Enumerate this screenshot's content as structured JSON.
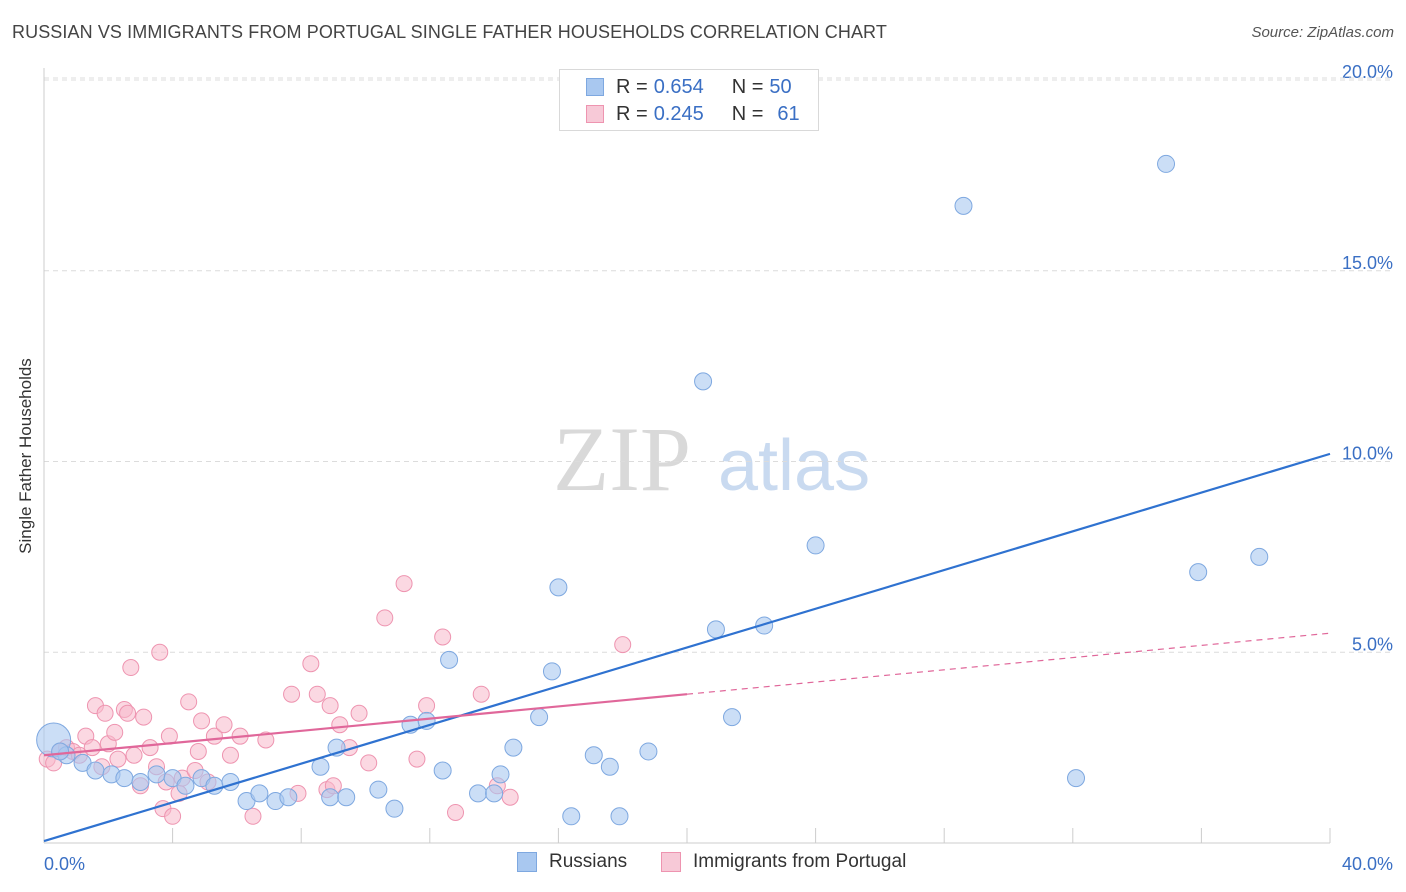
{
  "header": {
    "title": "RUSSIAN VS IMMIGRANTS FROM PORTUGAL SINGLE FATHER HOUSEHOLDS CORRELATION CHART",
    "source": "Source: ZipAtlas.com"
  },
  "watermark": {
    "zip": "ZIP",
    "atlas": "atlas"
  },
  "legend_top": {
    "rows": [
      {
        "r_label": "R = ",
        "r_value": "0.654",
        "n_label": "N = ",
        "n_value": "50"
      },
      {
        "r_label": "R = ",
        "r_value": "0.245",
        "n_label": "N = ",
        "n_value": "61"
      }
    ]
  },
  "colors": {
    "russians_fill": "#a9c8f0",
    "russians_stroke": "#7ea8e0",
    "russians_line": "#2f72d0",
    "portugal_fill": "#f7b8cb",
    "portugal_stroke": "#ee94b0",
    "portugal_line": "#e0679a",
    "axis_text": "#3a6fc4",
    "grid": "#dcdcdc"
  },
  "chart_data": {
    "type": "scatter",
    "title": "RUSSIAN VS IMMIGRANTS FROM PORTUGAL SINGLE FATHER HOUSEHOLDS CORRELATION CHART",
    "xlabel": "",
    "ylabel": "Single Father Households",
    "xlim": [
      0,
      40
    ],
    "ylim": [
      0,
      20.5
    ],
    "x_tick_labels": [
      "0.0%",
      "40.0%"
    ],
    "y_ticks": [
      5,
      10,
      15,
      20
    ],
    "y_tick_labels": [
      "5.0%",
      "10.0%",
      "15.0%",
      "20.0%"
    ],
    "grid": true,
    "legend_position": "top-center",
    "series": [
      {
        "name": "Russians",
        "R": 0.654,
        "N": 50,
        "trend": {
          "x": [
            0,
            40
          ],
          "y": [
            0.05,
            10.2
          ],
          "dashed_from": null
        },
        "points": [
          [
            0.3,
            2.7
          ],
          [
            0.7,
            2.3
          ],
          [
            1.2,
            2.1
          ],
          [
            1.6,
            1.9
          ],
          [
            2.1,
            1.8
          ],
          [
            2.5,
            1.7
          ],
          [
            3.0,
            1.6
          ],
          [
            3.5,
            1.8
          ],
          [
            4.0,
            1.7
          ],
          [
            4.4,
            1.5
          ],
          [
            4.9,
            1.7
          ],
          [
            5.3,
            1.5
          ],
          [
            5.8,
            1.6
          ],
          [
            6.3,
            1.1
          ],
          [
            6.7,
            1.3
          ],
          [
            7.2,
            1.1
          ],
          [
            7.6,
            1.2
          ],
          [
            8.6,
            2.0
          ],
          [
            8.9,
            1.2
          ],
          [
            9.4,
            1.2
          ],
          [
            9.1,
            2.5
          ],
          [
            10.4,
            1.4
          ],
          [
            10.9,
            0.9
          ],
          [
            11.4,
            3.1
          ],
          [
            11.9,
            3.2
          ],
          [
            12.4,
            1.9
          ],
          [
            12.6,
            4.8
          ],
          [
            13.5,
            1.3
          ],
          [
            14.0,
            1.3
          ],
          [
            14.2,
            1.8
          ],
          [
            14.6,
            2.5
          ],
          [
            15.4,
            3.3
          ],
          [
            15.8,
            4.5
          ],
          [
            16.0,
            6.7
          ],
          [
            16.4,
            0.7
          ],
          [
            17.1,
            2.3
          ],
          [
            17.6,
            2.0
          ],
          [
            17.9,
            0.7
          ],
          [
            18.8,
            2.4
          ],
          [
            20.5,
            12.1
          ],
          [
            20.9,
            5.6
          ],
          [
            21.4,
            3.3
          ],
          [
            22.4,
            5.7
          ],
          [
            24.0,
            7.8
          ],
          [
            28.6,
            16.7
          ],
          [
            32.1,
            1.7
          ],
          [
            34.9,
            17.8
          ],
          [
            35.9,
            7.1
          ],
          [
            37.8,
            7.5
          ],
          [
            0.5,
            2.4
          ]
        ]
      },
      {
        "name": "Immigrants from Portugal",
        "R": 0.245,
        "N": 61,
        "trend": {
          "x": [
            0,
            40
          ],
          "y": [
            2.3,
            5.5
          ],
          "solid_until_x": 20
        },
        "points": [
          [
            0.1,
            2.2
          ],
          [
            0.3,
            2.1
          ],
          [
            0.5,
            2.4
          ],
          [
            0.7,
            2.5
          ],
          [
            0.9,
            2.4
          ],
          [
            1.1,
            2.3
          ],
          [
            1.3,
            2.8
          ],
          [
            1.5,
            2.5
          ],
          [
            1.6,
            3.6
          ],
          [
            1.8,
            2.0
          ],
          [
            1.9,
            3.4
          ],
          [
            2.0,
            2.6
          ],
          [
            2.2,
            2.9
          ],
          [
            2.3,
            2.2
          ],
          [
            2.5,
            3.5
          ],
          [
            2.6,
            3.4
          ],
          [
            2.7,
            4.6
          ],
          [
            2.8,
            2.3
          ],
          [
            3.0,
            1.5
          ],
          [
            3.1,
            3.3
          ],
          [
            3.3,
            2.5
          ],
          [
            3.5,
            2.0
          ],
          [
            3.6,
            5.0
          ],
          [
            3.7,
            0.9
          ],
          [
            3.8,
            1.6
          ],
          [
            3.9,
            2.8
          ],
          [
            4.0,
            0.7
          ],
          [
            4.2,
            1.3
          ],
          [
            4.3,
            1.7
          ],
          [
            4.5,
            3.7
          ],
          [
            4.7,
            1.9
          ],
          [
            4.8,
            2.4
          ],
          [
            4.9,
            3.2
          ],
          [
            5.1,
            1.6
          ],
          [
            5.3,
            2.8
          ],
          [
            5.6,
            3.1
          ],
          [
            5.8,
            2.3
          ],
          [
            6.1,
            2.8
          ],
          [
            6.5,
            0.7
          ],
          [
            6.9,
            2.7
          ],
          [
            7.7,
            3.9
          ],
          [
            7.9,
            1.3
          ],
          [
            8.3,
            4.7
          ],
          [
            8.5,
            3.9
          ],
          [
            8.8,
            1.4
          ],
          [
            8.9,
            3.6
          ],
          [
            9.0,
            1.5
          ],
          [
            9.2,
            3.1
          ],
          [
            9.5,
            2.5
          ],
          [
            9.8,
            3.4
          ],
          [
            10.1,
            2.1
          ],
          [
            10.6,
            5.9
          ],
          [
            11.2,
            6.8
          ],
          [
            11.6,
            2.2
          ],
          [
            11.9,
            3.6
          ],
          [
            12.4,
            5.4
          ],
          [
            12.8,
            0.8
          ],
          [
            13.6,
            3.9
          ],
          [
            14.1,
            1.5
          ],
          [
            14.5,
            1.2
          ],
          [
            18.0,
            5.2
          ]
        ]
      }
    ]
  },
  "legend_bottom": {
    "items": [
      "Russians",
      "Immigrants from Portugal"
    ]
  }
}
